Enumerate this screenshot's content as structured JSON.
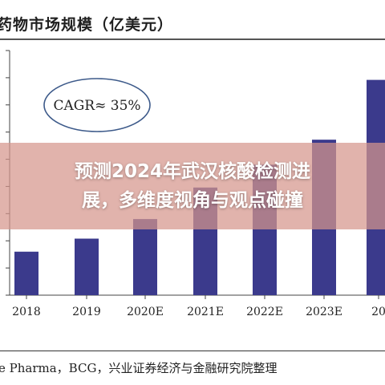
{
  "header": {
    "title": "药物市场规模（亿美元）"
  },
  "chart_data": {
    "type": "bar",
    "categories": [
      "2018",
      "2019",
      "2020E",
      "2021E",
      "2022E",
      "2023E",
      "20"
    ],
    "values": [
      40,
      52,
      70,
      99,
      120,
      143,
      198
    ],
    "ylim": [
      0,
      225
    ],
    "annotation": "CAGR≈ 35%",
    "bar_color": "#3b3a8c",
    "grid": false,
    "axis_color": "#444444"
  },
  "footer": {
    "source": "e Pharma，BCG，兴业证券经济与金融研究院整理"
  },
  "banner": {
    "line1": "预测2024年武汉核酸检测进",
    "line2": "展，多维度视角与观点碰撞"
  }
}
